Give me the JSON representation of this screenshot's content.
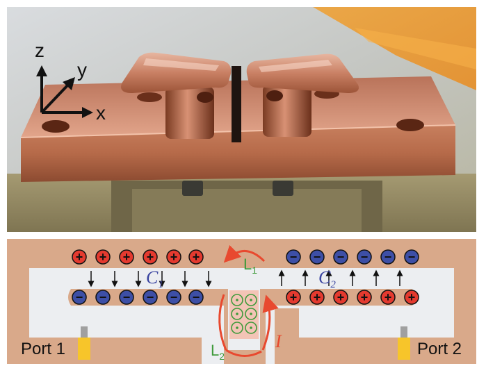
{
  "photo": {
    "axes": {
      "z": "z",
      "y": "y",
      "x": "x"
    },
    "colors": {
      "copper": "#c57a58",
      "copper_dark": "#7f3e24",
      "background": "#c9c4b4"
    }
  },
  "schematic": {
    "capacitors": {
      "left": "C",
      "left_sub": "1",
      "right": "C",
      "right_sub": "2"
    },
    "inductors": {
      "l1": "L",
      "l1_sub": "1",
      "l2": "L",
      "l2_sub": "2"
    },
    "current": "I",
    "ports": {
      "port1": "Port 1",
      "port2": "Port 2"
    },
    "charges": {
      "plus": "+",
      "minus": "−"
    },
    "colors": {
      "body": "#d9a98a",
      "cavity": "#eceef1",
      "positive": "#e43a2f",
      "negative": "#3d4fa6",
      "capacitor_label": "#3a44a0",
      "inductor_label": "#3e9a3a",
      "current_arrow": "#e8492f",
      "port": "#f7c52a",
      "port_pin": "#a0a0a0"
    }
  }
}
